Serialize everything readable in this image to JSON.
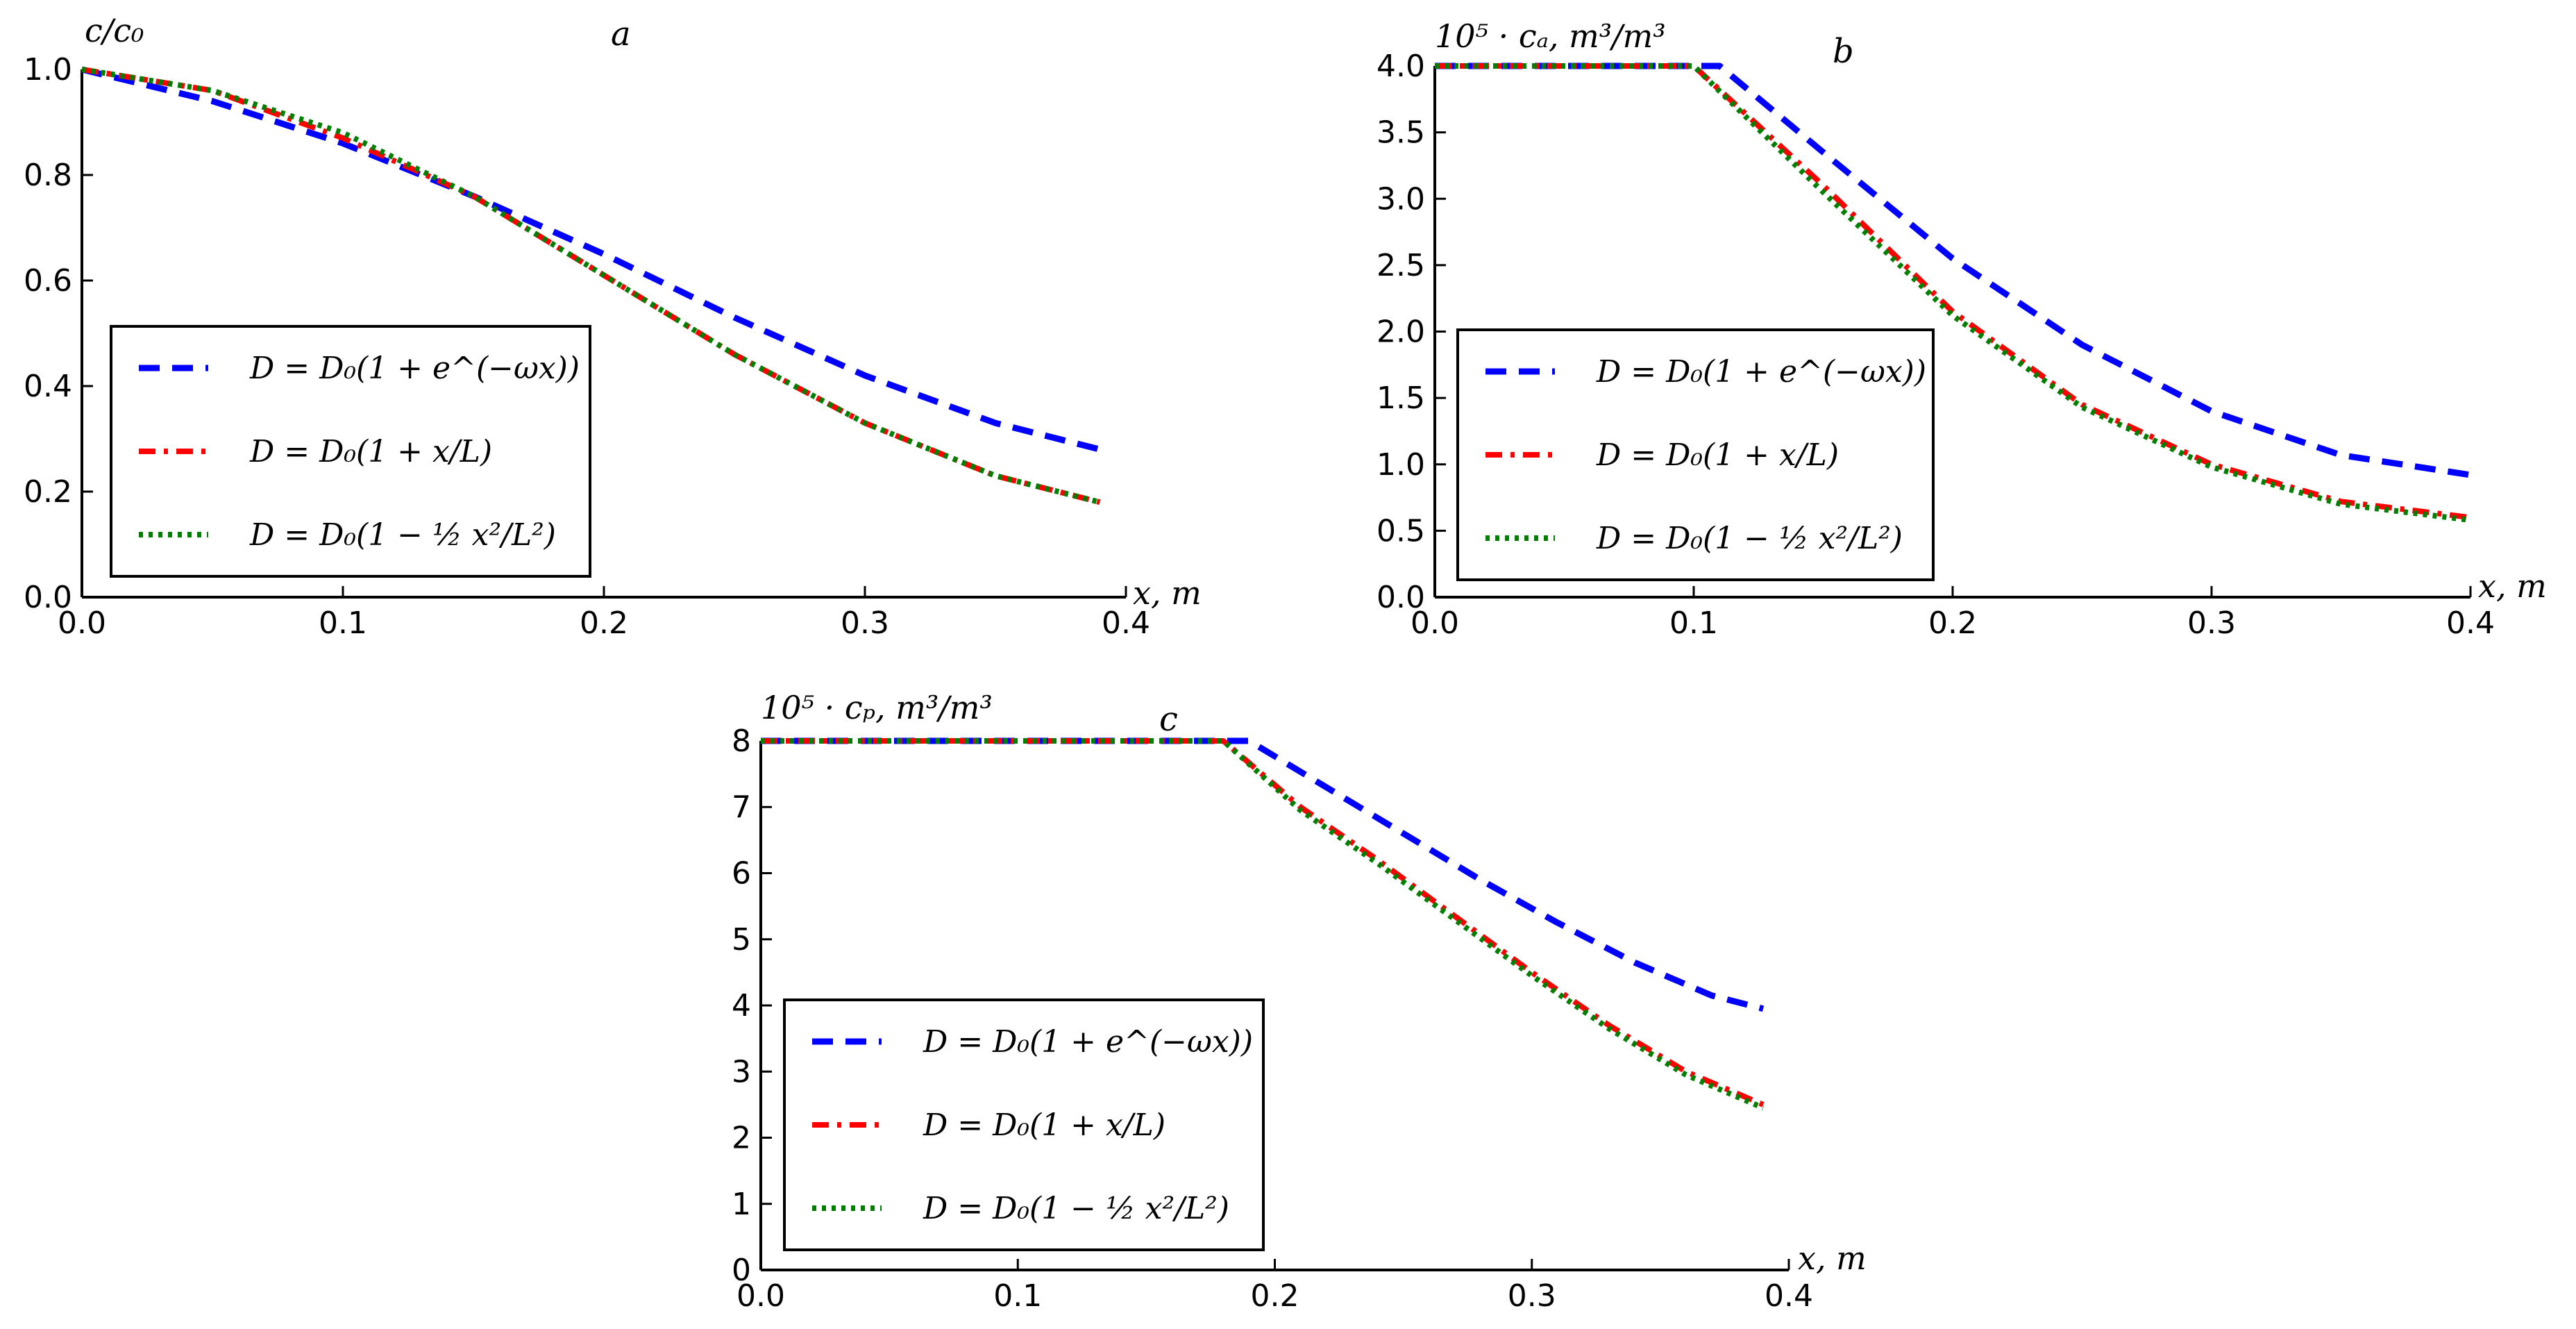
{
  "chart_data": [
    {
      "type": "line",
      "panel": "a",
      "ylabel": "c/c₀",
      "xlabel": "x, m",
      "xlim": [
        0.0,
        0.4
      ],
      "ylim": [
        0.0,
        1.0
      ],
      "x_ticks": [
        "0.0",
        "0.1",
        "0.2",
        "0.3",
        "0.4"
      ],
      "y_ticks": [
        "0.0",
        "0.2",
        "0.4",
        "0.6",
        "0.8",
        "1.0"
      ],
      "legend_position": "lower-left",
      "series": [
        {
          "name": "D = D₀(1 + e^(−ωx))",
          "color": "#0000ff",
          "dash": "dashed",
          "x": [
            0,
            0.05,
            0.1,
            0.15,
            0.2,
            0.25,
            0.3,
            0.35,
            0.39
          ],
          "y": [
            1.0,
            0.94,
            0.86,
            0.76,
            0.65,
            0.53,
            0.42,
            0.33,
            0.28
          ]
        },
        {
          "name": "D = D₀(1 + x/L)",
          "color": "#ff0000",
          "dash": "dashdot",
          "x": [
            0,
            0.05,
            0.1,
            0.15,
            0.2,
            0.25,
            0.3,
            0.35,
            0.39
          ],
          "y": [
            1.0,
            0.96,
            0.87,
            0.76,
            0.61,
            0.46,
            0.33,
            0.23,
            0.18
          ]
        },
        {
          "name": "D = D₀(1 − ½ x²/L²)",
          "color": "#008000",
          "dash": "dotted",
          "x": [
            0,
            0.05,
            0.1,
            0.15,
            0.2,
            0.25,
            0.3,
            0.35,
            0.39
          ],
          "y": [
            1.0,
            0.96,
            0.88,
            0.76,
            0.61,
            0.46,
            0.33,
            0.23,
            0.18
          ]
        }
      ]
    },
    {
      "type": "line",
      "panel": "b",
      "ylabel": "10⁵ · cₐ, m³/m³",
      "xlabel": "x, m",
      "xlim": [
        0.0,
        0.4
      ],
      "ylim": [
        0.0,
        4.0
      ],
      "x_ticks": [
        "0.0",
        "0.1",
        "0.2",
        "0.3",
        "0.4"
      ],
      "y_ticks": [
        "0.0",
        "0.5",
        "1.0",
        "1.5",
        "2.0",
        "2.5",
        "3.0",
        "3.5",
        "4.0"
      ],
      "legend_position": "lower-left",
      "series": [
        {
          "name": "D = D₀(1 + e^(−ωx))",
          "color": "#0000ff",
          "dash": "dashed",
          "x": [
            0,
            0.11,
            0.15,
            0.2,
            0.25,
            0.3,
            0.35,
            0.4
          ],
          "y": [
            4.0,
            4.0,
            3.35,
            2.55,
            1.9,
            1.4,
            1.07,
            0.92
          ]
        },
        {
          "name": "D = D₀(1 + x/L)",
          "color": "#ff0000",
          "dash": "dashdot",
          "x": [
            0,
            0.1,
            0.15,
            0.2,
            0.25,
            0.3,
            0.35,
            0.4
          ],
          "y": [
            4.0,
            4.0,
            3.1,
            2.15,
            1.45,
            1.0,
            0.72,
            0.6
          ]
        },
        {
          "name": "D = D₀(1 − ½ x²/L²)",
          "color": "#008000",
          "dash": "dotted",
          "x": [
            0,
            0.1,
            0.15,
            0.2,
            0.25,
            0.3,
            0.35,
            0.4
          ],
          "y": [
            4.0,
            4.0,
            3.05,
            2.12,
            1.43,
            0.98,
            0.7,
            0.58
          ]
        }
      ]
    },
    {
      "type": "line",
      "panel": "c",
      "ylabel": "10⁵ · cₚ, m³/m³",
      "xlabel": "x, m",
      "xlim": [
        0.0,
        0.4
      ],
      "ylim": [
        0,
        8
      ],
      "x_ticks": [
        "0.0",
        "0.1",
        "0.2",
        "0.3",
        "0.4"
      ],
      "y_ticks": [
        "0",
        "1",
        "2",
        "3",
        "4",
        "5",
        "6",
        "7",
        "8"
      ],
      "legend_position": "lower-left",
      "series": [
        {
          "name": "D = D₀(1 + e^(−ωx))",
          "color": "#0000ff",
          "dash": "dashed",
          "x": [
            0,
            0.19,
            0.22,
            0.25,
            0.28,
            0.31,
            0.34,
            0.37,
            0.39
          ],
          "y": [
            8.0,
            8.0,
            7.3,
            6.6,
            5.9,
            5.25,
            4.65,
            4.15,
            3.95
          ]
        },
        {
          "name": "D = D₀(1 + x/L)",
          "color": "#ff0000",
          "dash": "dashdot",
          "x": [
            0,
            0.18,
            0.21,
            0.24,
            0.27,
            0.3,
            0.33,
            0.36,
            0.39
          ],
          "y": [
            8.0,
            8.0,
            7.0,
            6.2,
            5.35,
            4.5,
            3.7,
            3.0,
            2.5
          ]
        },
        {
          "name": "D = D₀(1 − ½ x²/L²)",
          "color": "#008000",
          "dash": "dotted",
          "x": [
            0,
            0.18,
            0.21,
            0.24,
            0.27,
            0.3,
            0.33,
            0.36,
            0.39
          ],
          "y": [
            8.0,
            8.0,
            6.95,
            6.15,
            5.3,
            4.45,
            3.65,
            2.95,
            2.45
          ]
        }
      ]
    }
  ]
}
